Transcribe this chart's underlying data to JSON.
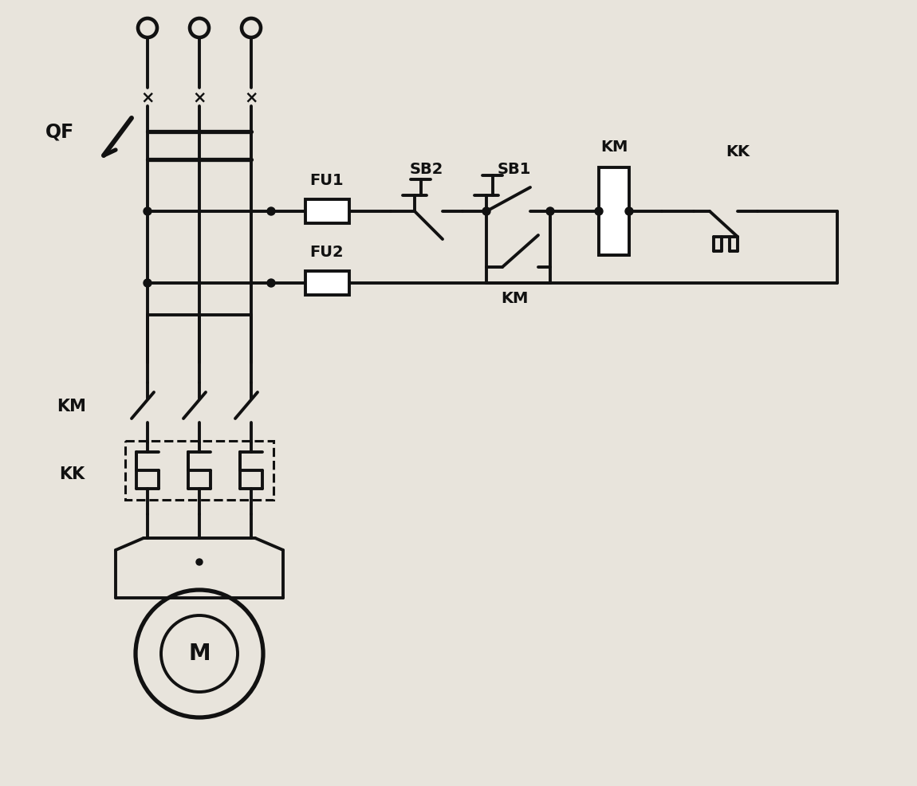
{
  "background_color": "#e8e4dc",
  "line_color": "#111111",
  "line_width": 2.8,
  "figsize": [
    11.5,
    9.86
  ],
  "dpi": 100,
  "labels": {
    "QF": "QF",
    "FU1": "FU1",
    "FU2": "FU2",
    "SB2": "SB2",
    "SB1": "SB1",
    "KM_coil": "KM",
    "KM_contact": "KM",
    "KK_label": "KK",
    "KM_power": "KM",
    "KK_power": "KK",
    "M": "M"
  }
}
